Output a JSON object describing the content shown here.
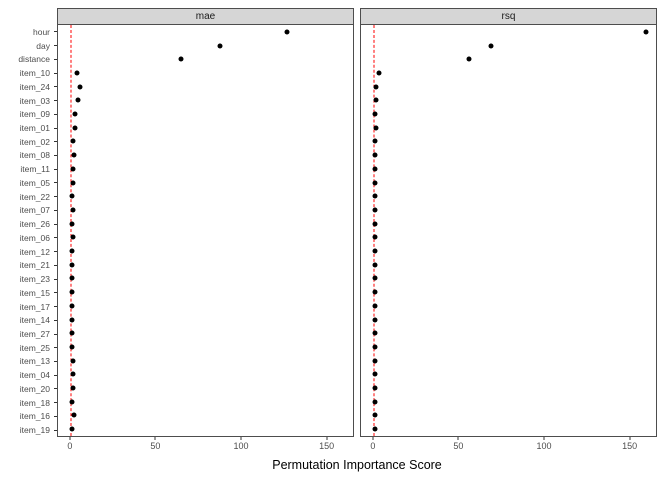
{
  "chart_data": {
    "type": "scatter",
    "title": "",
    "xlabel": "Permutation Importance Score",
    "ylabel": "",
    "facets": [
      "mae",
      "rsq"
    ],
    "legend": "none",
    "grid": "off",
    "x_ticks": [
      0,
      50,
      100,
      150
    ],
    "xlim": [
      -7.5,
      166
    ],
    "reference_line_x": 0,
    "reference_line_color": "#ff0000",
    "dot_color": "#000000",
    "strip_bg": "#d6d6d6",
    "categories": [
      "hour",
      "day",
      "distance",
      "item_10",
      "item_24",
      "item_03",
      "item_09",
      "item_01",
      "item_02",
      "item_08",
      "item_11",
      "item_05",
      "item_22",
      "item_07",
      "item_26",
      "item_06",
      "item_12",
      "item_21",
      "item_23",
      "item_15",
      "item_17",
      "item_14",
      "item_27",
      "item_25",
      "item_13",
      "item_04",
      "item_20",
      "item_18",
      "item_16",
      "item_19"
    ],
    "series": [
      {
        "name": "mae",
        "values": [
          127,
          88,
          65,
          3.5,
          5.5,
          4.5,
          2.5,
          2.5,
          1.5,
          2,
          1.5,
          1.5,
          1,
          1.5,
          1,
          1.5,
          1,
          1,
          1,
          1,
          1,
          1,
          1,
          1,
          1.5,
          1.5,
          1.5,
          1,
          2,
          1
        ]
      },
      {
        "name": "rsq",
        "values": [
          160,
          69,
          56,
          3,
          1.5,
          1.5,
          1,
          1.5,
          1,
          1,
          1,
          1,
          1,
          1,
          0.5,
          1,
          0.5,
          0.5,
          0.5,
          0.5,
          0.5,
          0.5,
          0.5,
          0.5,
          0.5,
          0.5,
          0.5,
          0.5,
          1,
          0.5
        ]
      }
    ]
  }
}
